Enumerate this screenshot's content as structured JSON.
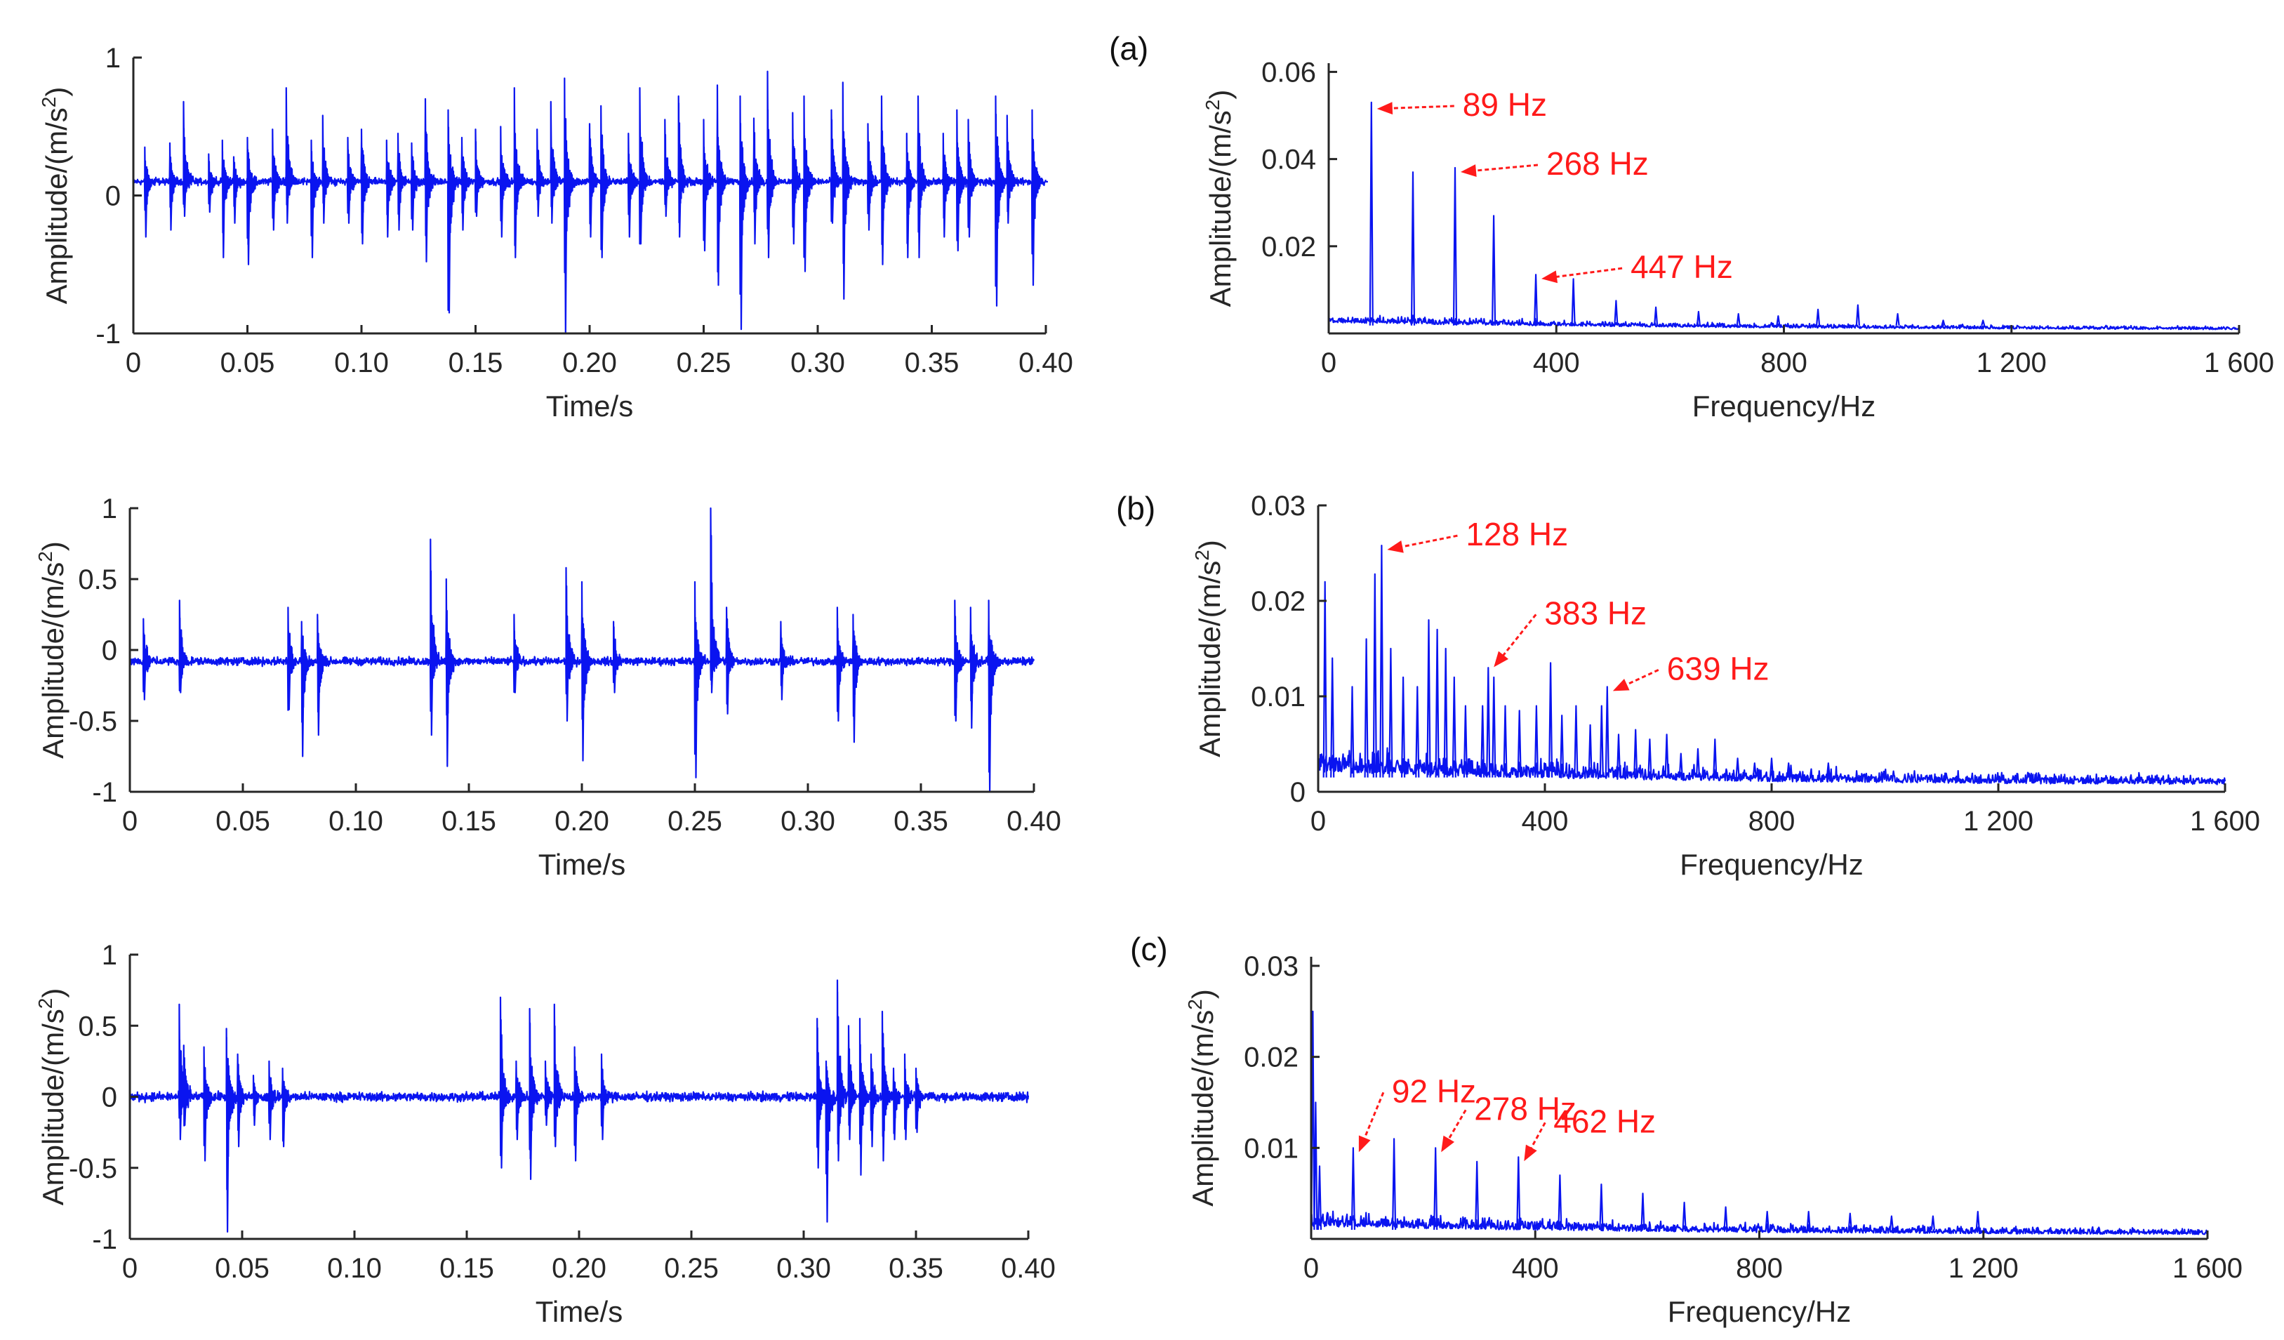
{
  "colors": {
    "signal": "#0a14f0",
    "annotation": "#ff1a1a",
    "axis": "#262626"
  },
  "chart_data": [
    {
      "type": "line",
      "panel": "time-a",
      "xlabel": "Time/s",
      "ylabel_main": "Amplitude/(m/s",
      "ylabel_sup": "2",
      "ylabel_end": ")",
      "xlim": [
        0,
        0.4
      ],
      "ylim": [
        -1,
        1
      ],
      "xticks": [
        0,
        0.05,
        0.1,
        0.15,
        0.2,
        0.25,
        0.3,
        0.35,
        0.4
      ],
      "xtick_labels": [
        "0",
        "0.05",
        "0.10",
        "0.15",
        "0.20",
        "0.25",
        "0.30",
        "0.35",
        "0.40"
      ],
      "yticks": [
        -1,
        0,
        1
      ],
      "ytick_labels": [
        "-1",
        "0",
        "1"
      ],
      "baseline": 0.1,
      "noise": 0.035,
      "impulses": [
        [
          0.005,
          0.35,
          -0.3
        ],
        [
          0.016,
          0.38,
          -0.25
        ],
        [
          0.022,
          0.68,
          -0.15
        ],
        [
          0.033,
          0.3,
          -0.12
        ],
        [
          0.039,
          0.4,
          -0.45
        ],
        [
          0.044,
          0.28,
          -0.2
        ],
        [
          0.05,
          0.42,
          -0.5
        ],
        [
          0.061,
          0.48,
          -0.25
        ],
        [
          0.067,
          0.78,
          -0.2
        ],
        [
          0.078,
          0.4,
          -0.45
        ],
        [
          0.083,
          0.58,
          -0.2
        ],
        [
          0.094,
          0.42,
          -0.2
        ],
        [
          0.1,
          0.48,
          -0.35
        ],
        [
          0.111,
          0.4,
          -0.3
        ],
        [
          0.116,
          0.45,
          -0.25
        ],
        [
          0.122,
          0.38,
          -0.25
        ],
        [
          0.128,
          0.7,
          -0.48
        ],
        [
          0.138,
          0.62,
          -0.85
        ],
        [
          0.144,
          0.42,
          -0.25
        ],
        [
          0.15,
          0.48,
          -0.15
        ],
        [
          0.161,
          0.5,
          -0.3
        ],
        [
          0.167,
          0.78,
          -0.45
        ],
        [
          0.177,
          0.48,
          -0.15
        ],
        [
          0.183,
          0.68,
          -0.2
        ],
        [
          0.189,
          0.85,
          -1.0
        ],
        [
          0.2,
          0.52,
          -0.3
        ],
        [
          0.205,
          0.65,
          -0.45
        ],
        [
          0.217,
          0.45,
          -0.3
        ],
        [
          0.222,
          0.78,
          -0.35
        ],
        [
          0.233,
          0.55,
          -0.15
        ],
        [
          0.239,
          0.72,
          -0.3
        ],
        [
          0.25,
          0.55,
          -0.4
        ],
        [
          0.256,
          0.8,
          -0.65
        ],
        [
          0.266,
          0.72,
          -0.97
        ],
        [
          0.272,
          0.56,
          -0.35
        ],
        [
          0.278,
          0.9,
          -0.45
        ],
        [
          0.289,
          0.6,
          -0.35
        ],
        [
          0.294,
          0.72,
          -0.55
        ],
        [
          0.306,
          0.62,
          -0.2
        ],
        [
          0.311,
          0.82,
          -0.75
        ],
        [
          0.322,
          0.52,
          -0.25
        ],
        [
          0.328,
          0.72,
          -0.5
        ],
        [
          0.339,
          0.45,
          -0.45
        ],
        [
          0.344,
          0.72,
          -0.45
        ],
        [
          0.355,
          0.45,
          -0.3
        ],
        [
          0.361,
          0.62,
          -0.4
        ],
        [
          0.366,
          0.55,
          -0.3
        ],
        [
          0.378,
          0.72,
          -0.8
        ],
        [
          0.383,
          0.58,
          -0.2
        ],
        [
          0.394,
          0.62,
          -0.65
        ],
        [
          0.4,
          0.1,
          0.1
        ]
      ]
    },
    {
      "type": "line",
      "panel": "spectrum-a",
      "label": "(a)",
      "xlabel": "Frequency/Hz",
      "ylabel_main": "Amplitude/(m/s",
      "ylabel_sup": "2",
      "ylabel_end": ")",
      "xlim": [
        0,
        1600
      ],
      "ylim": [
        0,
        0.062
      ],
      "xticks": [
        0,
        400,
        800,
        1200,
        1600
      ],
      "xtick_labels": [
        "0",
        "400",
        "800",
        "1 200",
        "1 600"
      ],
      "yticks": [
        0.02,
        0.04,
        0.06
      ],
      "ytick_labels": [
        "0.02",
        "0.04",
        "0.06"
      ],
      "floor": 0.0018,
      "floor_noise": 0.0016,
      "peaks": [
        [
          75,
          0.053
        ],
        [
          148,
          0.037
        ],
        [
          222,
          0.038
        ],
        [
          290,
          0.027
        ],
        [
          364,
          0.0135
        ],
        [
          430,
          0.0125
        ],
        [
          505,
          0.0075
        ],
        [
          575,
          0.006
        ],
        [
          650,
          0.005
        ],
        [
          720,
          0.0045
        ],
        [
          790,
          0.004
        ],
        [
          860,
          0.0055
        ],
        [
          930,
          0.0065
        ],
        [
          1000,
          0.0045
        ],
        [
          1080,
          0.003
        ],
        [
          1150,
          0.003
        ]
      ],
      "annotations": [
        {
          "text": "89 Hz",
          "x": 75,
          "y": 0.0525
        },
        {
          "text": "268 Hz",
          "x": 222,
          "y": 0.038
        },
        {
          "text": "447 Hz",
          "x": 364,
          "y": 0.0135
        }
      ]
    },
    {
      "type": "line",
      "panel": "time-b",
      "xlabel": "Time/s",
      "ylabel_main": "Amplitude/(m/s",
      "ylabel_sup": "2",
      "ylabel_end": ")",
      "xlim": [
        0,
        0.4
      ],
      "ylim": [
        -1,
        1
      ],
      "xticks": [
        0,
        0.05,
        0.1,
        0.15,
        0.2,
        0.25,
        0.3,
        0.35,
        0.4
      ],
      "xtick_labels": [
        "0",
        "0.05",
        "0.10",
        "0.15",
        "0.20",
        "0.25",
        "0.30",
        "0.35",
        "0.40"
      ],
      "yticks": [
        -1,
        -0.5,
        0,
        0.5,
        1
      ],
      "ytick_labels": [
        "-1",
        "-0.5",
        "0",
        "0.5",
        "1"
      ],
      "baseline": -0.08,
      "noise": 0.04,
      "impulses": [
        [
          0.006,
          0.22,
          -0.35
        ],
        [
          0.022,
          0.35,
          -0.3
        ],
        [
          0.07,
          0.3,
          -0.42
        ],
        [
          0.076,
          0.2,
          -0.75
        ],
        [
          0.083,
          0.25,
          -0.6
        ],
        [
          0.133,
          0.78,
          -0.6
        ],
        [
          0.14,
          0.5,
          -0.82
        ],
        [
          0.17,
          0.25,
          -0.3
        ],
        [
          0.193,
          0.58,
          -0.5
        ],
        [
          0.2,
          0.48,
          -0.78
        ],
        [
          0.214,
          0.2,
          -0.3
        ],
        [
          0.25,
          0.48,
          -0.9
        ],
        [
          0.257,
          1.0,
          -0.3
        ],
        [
          0.264,
          0.3,
          -0.45
        ],
        [
          0.288,
          0.2,
          -0.35
        ],
        [
          0.313,
          0.3,
          -0.5
        ],
        [
          0.32,
          0.25,
          -0.65
        ],
        [
          0.365,
          0.35,
          -0.5
        ],
        [
          0.372,
          0.3,
          -0.55
        ],
        [
          0.38,
          0.35,
          -1.0
        ]
      ]
    },
    {
      "type": "line",
      "panel": "spectrum-b",
      "label": "(b)",
      "xlabel": "Frequency/Hz",
      "ylabel_main": "Amplitude/(m/s",
      "ylabel_sup": "2",
      "ylabel_end": ")",
      "xlim": [
        0,
        1600
      ],
      "ylim": [
        0,
        0.03
      ],
      "xticks": [
        0,
        400,
        800,
        1200,
        1600
      ],
      "xtick_labels": [
        "0",
        "400",
        "800",
        "1 200",
        "1 600"
      ],
      "yticks": [
        0,
        0.01,
        0.02,
        0.03
      ],
      "ytick_labels": [
        "0",
        "0.01",
        "0.02",
        "0.03"
      ],
      "floor": 0.0015,
      "floor_noise": 0.0022,
      "peaks": [
        [
          12,
          0.022
        ],
        [
          25,
          0.014
        ],
        [
          60,
          0.011
        ],
        [
          85,
          0.016
        ],
        [
          100,
          0.0228
        ],
        [
          112,
          0.0258
        ],
        [
          128,
          0.015
        ],
        [
          150,
          0.012
        ],
        [
          175,
          0.011
        ],
        [
          195,
          0.018
        ],
        [
          210,
          0.017
        ],
        [
          225,
          0.015
        ],
        [
          240,
          0.012
        ],
        [
          260,
          0.009
        ],
        [
          290,
          0.009
        ],
        [
          300,
          0.013
        ],
        [
          310,
          0.012
        ],
        [
          330,
          0.009
        ],
        [
          355,
          0.0085
        ],
        [
          385,
          0.009
        ],
        [
          410,
          0.0135
        ],
        [
          430,
          0.008
        ],
        [
          455,
          0.009
        ],
        [
          480,
          0.007
        ],
        [
          500,
          0.009
        ],
        [
          510,
          0.011
        ],
        [
          530,
          0.006
        ],
        [
          560,
          0.0065
        ],
        [
          585,
          0.0055
        ],
        [
          615,
          0.006
        ],
        [
          640,
          0.004
        ],
        [
          670,
          0.0045
        ],
        [
          700,
          0.0055
        ],
        [
          740,
          0.0035
        ],
        [
          770,
          0.003
        ],
        [
          800,
          0.0035
        ],
        [
          830,
          0.003
        ],
        [
          900,
          0.003
        ]
      ],
      "annotations": [
        {
          "text": "128 Hz",
          "x": 112,
          "y": 0.0258
        },
        {
          "text": "383 Hz",
          "x": 300,
          "y": 0.0135
        },
        {
          "text": "639 Hz",
          "x": 510,
          "y": 0.011
        }
      ]
    },
    {
      "type": "line",
      "panel": "time-c",
      "xlabel": "Time/s",
      "ylabel_main": "Amplitude/(m/s",
      "ylabel_sup": "2",
      "ylabel_end": ")",
      "xlim": [
        0,
        0.4
      ],
      "ylim": [
        -1,
        1
      ],
      "xticks": [
        0,
        0.05,
        0.1,
        0.15,
        0.2,
        0.25,
        0.3,
        0.35,
        0.4
      ],
      "xtick_labels": [
        "0",
        "0.05",
        "0.10",
        "0.15",
        "0.20",
        "0.25",
        "0.30",
        "0.35",
        "0.40"
      ],
      "yticks": [
        -1,
        -0.5,
        0,
        0.5,
        1
      ],
      "ytick_labels": [
        "-1",
        "-0.5",
        "0",
        "0.5",
        "1"
      ],
      "baseline": 0.0,
      "noise": 0.045,
      "impulses": [
        [
          0.022,
          0.65,
          -0.3
        ],
        [
          0.024,
          0.3,
          -0.2
        ],
        [
          0.033,
          0.35,
          -0.45
        ],
        [
          0.043,
          0.48,
          -0.95
        ],
        [
          0.048,
          0.3,
          -0.35
        ],
        [
          0.055,
          0.15,
          -0.2
        ],
        [
          0.062,
          0.25,
          -0.3
        ],
        [
          0.068,
          0.2,
          -0.35
        ],
        [
          0.165,
          0.7,
          -0.5
        ],
        [
          0.172,
          0.25,
          -0.3
        ],
        [
          0.178,
          0.62,
          -0.58
        ],
        [
          0.185,
          0.25,
          -0.2
        ],
        [
          0.189,
          0.65,
          -0.35
        ],
        [
          0.198,
          0.35,
          -0.45
        ],
        [
          0.21,
          0.3,
          -0.3
        ],
        [
          0.306,
          0.55,
          -0.5
        ],
        [
          0.31,
          0.25,
          -0.88
        ],
        [
          0.315,
          0.82,
          -0.45
        ],
        [
          0.32,
          0.5,
          -0.3
        ],
        [
          0.325,
          0.55,
          -0.55
        ],
        [
          0.33,
          0.3,
          -0.35
        ],
        [
          0.335,
          0.6,
          -0.45
        ],
        [
          0.34,
          0.2,
          -0.3
        ],
        [
          0.345,
          0.3,
          -0.3
        ],
        [
          0.35,
          0.2,
          -0.25
        ]
      ]
    },
    {
      "type": "line",
      "panel": "spectrum-c",
      "label": "(c)",
      "xlabel": "Frequency/Hz",
      "ylabel_main": "Amplitude/(m/s",
      "ylabel_sup": "2",
      "ylabel_end": ")",
      "xlim": [
        0,
        1600
      ],
      "ylim": [
        0,
        0.031
      ],
      "xticks": [
        0,
        400,
        800,
        1200,
        1600
      ],
      "xtick_labels": [
        "0",
        "400",
        "800",
        "1 200",
        "1 600"
      ],
      "yticks": [
        0.01,
        0.02,
        0.03
      ],
      "ytick_labels": [
        "0.01",
        "0.02",
        "0.03"
      ],
      "floor": 0.001,
      "floor_noise": 0.0015,
      "peaks": [
        [
          3,
          0.025
        ],
        [
          8,
          0.015
        ],
        [
          15,
          0.008
        ],
        [
          75,
          0.01
        ],
        [
          148,
          0.011
        ],
        [
          222,
          0.01
        ],
        [
          296,
          0.0085
        ],
        [
          370,
          0.009
        ],
        [
          444,
          0.007
        ],
        [
          518,
          0.006
        ],
        [
          592,
          0.005
        ],
        [
          666,
          0.004
        ],
        [
          740,
          0.0035
        ],
        [
          814,
          0.003
        ],
        [
          888,
          0.003
        ],
        [
          962,
          0.0028
        ],
        [
          1036,
          0.0025
        ],
        [
          1110,
          0.0025
        ],
        [
          1190,
          0.003
        ]
      ],
      "annotations": [
        {
          "text": "92 Hz",
          "x": 75,
          "y": 0.01
        },
        {
          "text": "278 Hz",
          "x": 222,
          "y": 0.01
        },
        {
          "text": "462 Hz",
          "x": 370,
          "y": 0.009
        }
      ]
    }
  ]
}
